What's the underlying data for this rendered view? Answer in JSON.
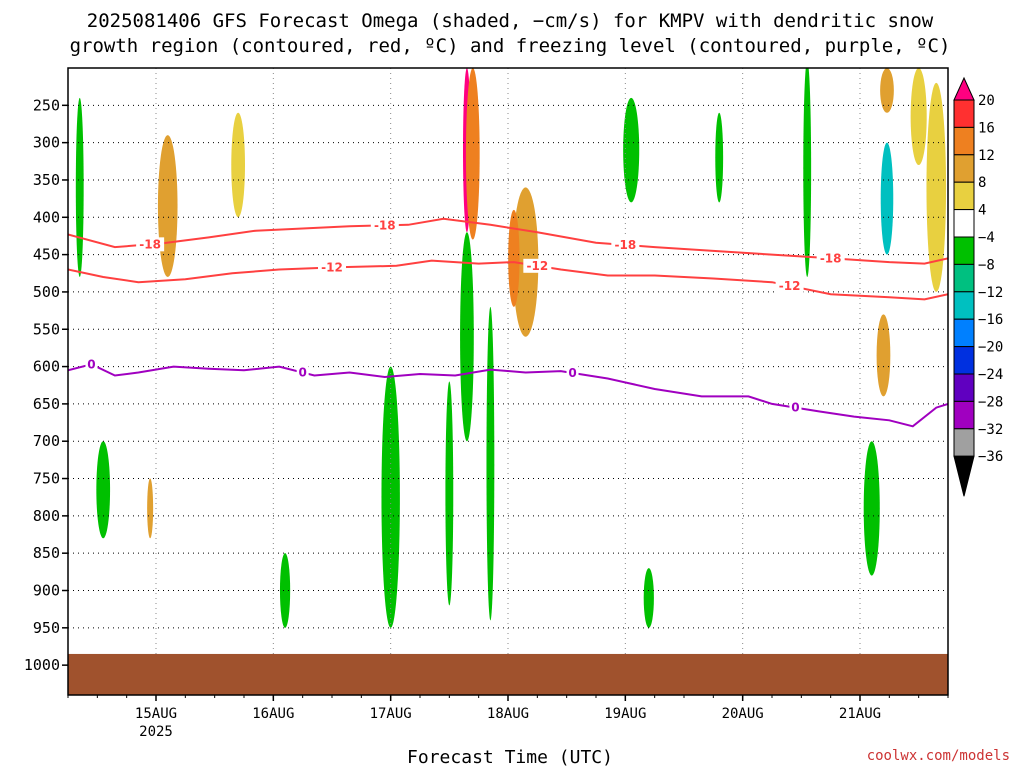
{
  "chart_data": {
    "type": "heatmap",
    "title_line1": "2025081406 GFS Forecast Omega (shaded, −cm/s) for KMPV with dendritic snow",
    "title_line2": "growth region (contoured, red, ºC) and freezing level (contoured, purple, ºC)",
    "xlabel": "Forecast Time (UTC)",
    "credit": "coolwx.com/models",
    "x_ticks": [
      {
        "label": "15AUG",
        "sub": "2025",
        "t": 0.75
      },
      {
        "label": "16AUG",
        "sub": "",
        "t": 1.75
      },
      {
        "label": "17AUG",
        "sub": "",
        "t": 2.75
      },
      {
        "label": "18AUG",
        "sub": "",
        "t": 3.75
      },
      {
        "label": "19AUG",
        "sub": "",
        "t": 4.75
      },
      {
        "label": "20AUG",
        "sub": "",
        "t": 5.75
      },
      {
        "label": "21AUG",
        "sub": "",
        "t": 6.75
      }
    ],
    "x_range": [
      0,
      7.5
    ],
    "y_ticks": [
      250,
      300,
      350,
      400,
      450,
      500,
      550,
      600,
      650,
      700,
      750,
      800,
      850,
      900,
      950,
      1000
    ],
    "y_range": [
      200,
      1040
    ],
    "surface_color": "#a0522d",
    "colorbar": {
      "labels": [
        "20",
        "16",
        "12",
        "8",
        "4",
        "−4",
        "−8",
        "−12",
        "−16",
        "−20",
        "−24",
        "−28",
        "−32",
        "−36"
      ],
      "colors": [
        "#ff0080",
        "#ff3030",
        "#ee8020",
        "#e0a030",
        "#e8d040",
        "#ffffff",
        "#00c000",
        "#00c080",
        "#00c0c0",
        "#0080ff",
        "#0030e0",
        "#6000c0",
        "#a000c0",
        "#a0a0a0",
        "#000000"
      ]
    },
    "contours": [
      {
        "label": "-18",
        "color": "#ff4040",
        "points": [
          [
            0,
            423
          ],
          [
            0.4,
            440
          ],
          [
            0.8,
            435
          ],
          [
            1.2,
            427
          ],
          [
            1.6,
            418
          ],
          [
            2.0,
            415
          ],
          [
            2.4,
            412
          ],
          [
            2.9,
            410
          ],
          [
            3.2,
            402
          ],
          [
            3.6,
            410
          ],
          [
            4.0,
            420
          ],
          [
            4.5,
            434
          ],
          [
            5.0,
            440
          ],
          [
            5.5,
            445
          ],
          [
            6.0,
            450
          ],
          [
            6.5,
            455
          ],
          [
            7.0,
            460
          ],
          [
            7.3,
            462
          ],
          [
            7.5,
            455
          ]
        ],
        "label_t": [
          0.7,
          2.7,
          4.75,
          6.5
        ]
      },
      {
        "label": "-12",
        "color": "#ff4040",
        "points": [
          [
            0,
            470
          ],
          [
            0.3,
            480
          ],
          [
            0.6,
            487
          ],
          [
            1.0,
            483
          ],
          [
            1.4,
            475
          ],
          [
            1.8,
            470
          ],
          [
            2.3,
            467
          ],
          [
            2.8,
            465
          ],
          [
            3.1,
            458
          ],
          [
            3.5,
            462
          ],
          [
            3.8,
            460
          ],
          [
            4.2,
            470
          ],
          [
            4.6,
            478
          ],
          [
            5.0,
            478
          ],
          [
            5.5,
            482
          ],
          [
            6.0,
            487
          ],
          [
            6.5,
            503
          ],
          [
            7.0,
            507
          ],
          [
            7.3,
            510
          ],
          [
            7.5,
            503
          ]
        ],
        "label_t": [
          2.25,
          4.0,
          6.15
        ]
      },
      {
        "label": "0",
        "color": "#a000c0",
        "points": [
          [
            0,
            605
          ],
          [
            0.2,
            597
          ],
          [
            0.4,
            612
          ],
          [
            0.6,
            608
          ],
          [
            0.9,
            600
          ],
          [
            1.2,
            603
          ],
          [
            1.5,
            605
          ],
          [
            1.8,
            600
          ],
          [
            2.1,
            612
          ],
          [
            2.4,
            608
          ],
          [
            2.7,
            614
          ],
          [
            3.0,
            610
          ],
          [
            3.3,
            612
          ],
          [
            3.6,
            604
          ],
          [
            3.9,
            608
          ],
          [
            4.2,
            606
          ],
          [
            4.6,
            616
          ],
          [
            5.0,
            630
          ],
          [
            5.4,
            640
          ],
          [
            5.8,
            640
          ],
          [
            6.0,
            650
          ],
          [
            6.4,
            660
          ],
          [
            6.7,
            667
          ],
          [
            7.0,
            672
          ],
          [
            7.2,
            680
          ],
          [
            7.4,
            655
          ],
          [
            7.5,
            650
          ]
        ],
        "label_t": [
          0.2,
          2.0,
          4.3,
          6.2
        ]
      }
    ],
    "omega_features": [
      {
        "t": 3.4,
        "p0": 200,
        "p1": 420,
        "w": 0.05,
        "v": 20
      },
      {
        "t": 3.45,
        "p0": 200,
        "p1": 430,
        "w": 0.1,
        "v": 12
      },
      {
        "t": 3.4,
        "p0": 420,
        "p1": 700,
        "w": 0.1,
        "v": -8
      },
      {
        "t": 2.75,
        "p0": 640,
        "p1": 920,
        "w": 0.05,
        "v": -36
      },
      {
        "t": 2.75,
        "p0": 630,
        "p1": 930,
        "w": 0.1,
        "v": -20
      },
      {
        "t": 2.75,
        "p0": 600,
        "p1": 950,
        "w": 0.14,
        "v": -8
      },
      {
        "t": 4.8,
        "p0": 260,
        "p1": 350,
        "w": 0.08,
        "v": -28
      },
      {
        "t": 4.8,
        "p0": 240,
        "p1": 380,
        "w": 0.12,
        "v": -8
      },
      {
        "t": 6.98,
        "p0": 320,
        "p1": 430,
        "w": 0.05,
        "v": -32
      },
      {
        "t": 6.98,
        "p0": 300,
        "p1": 450,
        "w": 0.09,
        "v": -16
      },
      {
        "t": 6.98,
        "p0": 200,
        "p1": 260,
        "w": 0.1,
        "v": 8
      },
      {
        "t": 6.95,
        "p0": 560,
        "p1": 600,
        "w": 0.05,
        "v": 16
      },
      {
        "t": 6.95,
        "p0": 530,
        "p1": 640,
        "w": 0.1,
        "v": 8
      },
      {
        "t": 3.9,
        "p0": 360,
        "p1": 560,
        "w": 0.2,
        "v": 8
      },
      {
        "t": 3.8,
        "p0": 390,
        "p1": 520,
        "w": 0.08,
        "v": 12
      },
      {
        "t": 0.85,
        "p0": 290,
        "p1": 480,
        "w": 0.15,
        "v": 8
      },
      {
        "t": 1.45,
        "p0": 260,
        "p1": 400,
        "w": 0.1,
        "v": 4
      },
      {
        "t": 7.4,
        "p0": 220,
        "p1": 500,
        "w": 0.15,
        "v": 4
      },
      {
        "t": 7.25,
        "p0": 200,
        "p1": 330,
        "w": 0.12,
        "v": 4
      },
      {
        "t": 1.85,
        "p0": 850,
        "p1": 950,
        "w": 0.07,
        "v": -8
      },
      {
        "t": 4.95,
        "p0": 870,
        "p1": 950,
        "w": 0.07,
        "v": -8
      },
      {
        "t": 0.3,
        "p0": 700,
        "p1": 830,
        "w": 0.1,
        "v": -8
      },
      {
        "t": 6.85,
        "p0": 700,
        "p1": 880,
        "w": 0.12,
        "v": -8
      },
      {
        "t": 6.3,
        "p0": 190,
        "p1": 480,
        "w": 0.05,
        "v": -8
      },
      {
        "t": 5.55,
        "p0": 260,
        "p1": 380,
        "w": 0.05,
        "v": -8
      },
      {
        "t": 3.6,
        "p0": 520,
        "p1": 940,
        "w": 0.05,
        "v": -8
      },
      {
        "t": 3.25,
        "p0": 620,
        "p1": 920,
        "w": 0.05,
        "v": -8
      },
      {
        "t": 0.1,
        "p0": 240,
        "p1": 480,
        "w": 0.05,
        "v": -8
      },
      {
        "t": 0.7,
        "p0": 750,
        "p1": 830,
        "w": 0.03,
        "v": 8
      }
    ]
  }
}
